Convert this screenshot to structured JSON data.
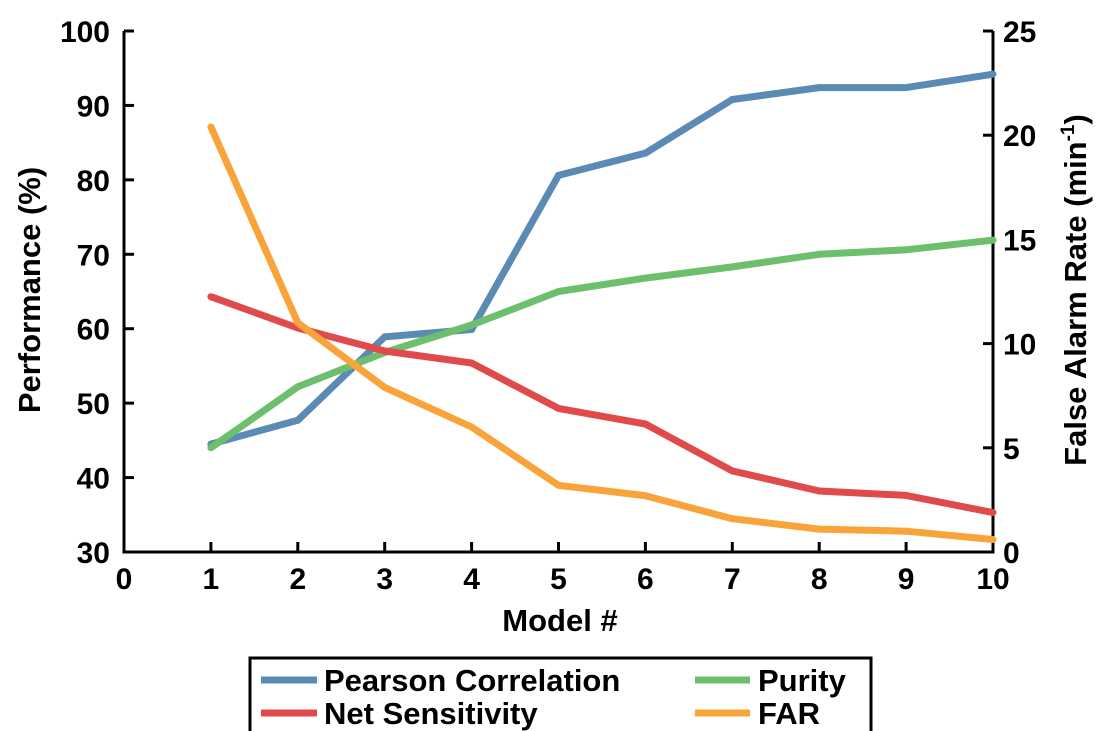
{
  "chart_data": {
    "type": "line",
    "title": "",
    "xlabel": "Model #",
    "ylabel": "Performance (%)",
    "y2label_main": "False Alarm Rate (min",
    "y2label_sup": "-1",
    "y2label_end": ")",
    "x": [
      1,
      2,
      3,
      4,
      5,
      6,
      7,
      8,
      9,
      10
    ],
    "xlim": [
      0,
      10
    ],
    "ylim": [
      30,
      100
    ],
    "y2lim": [
      0,
      25
    ],
    "xticks": [
      "0",
      "1",
      "2",
      "3",
      "4",
      "5",
      "6",
      "7",
      "8",
      "9",
      "10"
    ],
    "yticks": [
      "30",
      "40",
      "50",
      "60",
      "70",
      "80",
      "90",
      "100"
    ],
    "y2ticks": [
      "0",
      "5",
      "10",
      "15",
      "20",
      "25"
    ],
    "grid": false,
    "legend_position": "bottom",
    "series": [
      {
        "name": "Pearson Correlation",
        "axis": "left",
        "color": "#5b8bb5",
        "values": [
          44.5,
          47.7,
          58.9,
          59.9,
          80.6,
          83.6,
          90.8,
          92.4,
          92.4,
          94.2
        ]
      },
      {
        "name": "Purity",
        "axis": "left",
        "color": "#6cbf6c",
        "values": [
          44.0,
          52.2,
          56.8,
          60.5,
          65.0,
          66.8,
          68.3,
          70.0,
          70.6,
          71.9
        ]
      },
      {
        "name": "Net Sensitivity",
        "axis": "left",
        "color": "#e04a4a",
        "values": [
          64.3,
          60.1,
          57.0,
          55.4,
          49.3,
          47.2,
          40.9,
          38.2,
          37.6,
          35.3
        ]
      },
      {
        "name": "FAR",
        "axis": "right",
        "color": "#f9a43a",
        "values": [
          20.4,
          11.0,
          7.9,
          6.0,
          3.2,
          2.7,
          1.6,
          1.1,
          1.0,
          0.6
        ]
      }
    ]
  }
}
